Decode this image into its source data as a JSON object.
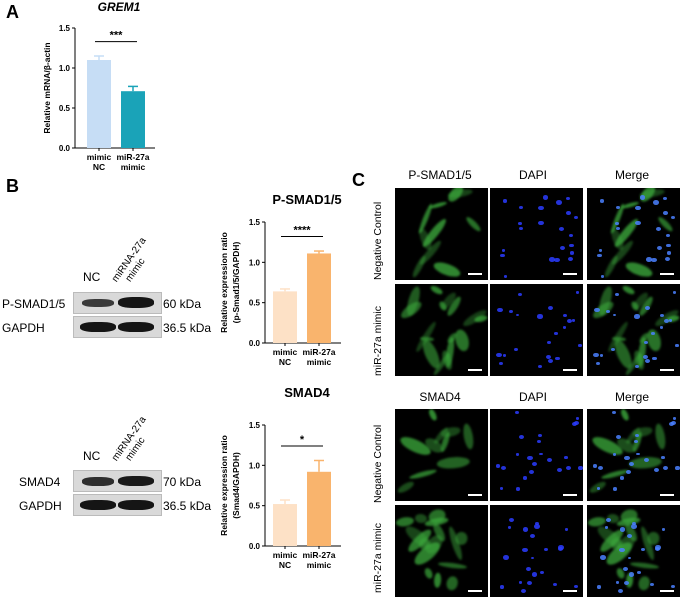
{
  "panels": {
    "A": "A",
    "B": "B",
    "C": "C"
  },
  "chart_data": [
    {
      "type": "bar",
      "title": "GREM1",
      "ylabel": "Relative mRNA/β-actin",
      "ylim": [
        0,
        1.5
      ],
      "yticks": [
        "0.0",
        "0.5",
        "1.0",
        "1.5"
      ],
      "categories": [
        "mimic NC",
        "miR-27a mimic"
      ],
      "category_lines": [
        [
          "mimic",
          "NC"
        ],
        [
          "miR-27a",
          "mimic"
        ]
      ],
      "values": [
        1.1,
        0.71
      ],
      "errors": [
        0.05,
        0.06
      ],
      "colors": [
        "#c6ddf5",
        "#1aa3b8"
      ],
      "significance": "***"
    },
    {
      "type": "bar",
      "title": "P-SMAD1/5",
      "ylabel": "Relative expression ratio (p-Smad1/5/GAPDH)",
      "ylabel_lines": [
        "Relative expression ratio",
        "(p-Smad1/5/GAPDH)"
      ],
      "ylim": [
        0,
        1.5
      ],
      "yticks": [
        "0.0",
        "0.5",
        "1.0",
        "1.5"
      ],
      "categories": [
        "mimic NC",
        "miR-27a mimic"
      ],
      "category_lines": [
        [
          "mimic",
          "NC"
        ],
        [
          "miR-27a",
          "mimic"
        ]
      ],
      "values": [
        0.64,
        1.11
      ],
      "errors": [
        0.03,
        0.03
      ],
      "colors": [
        "#fde1c6",
        "#f9b46d"
      ],
      "significance": "****"
    },
    {
      "type": "bar",
      "title": "SMAD4",
      "ylabel": "Relative expression ratio (Smad4/GAPDH)",
      "ylabel_lines": [
        "Relative expression ratio",
        "(Smad4/GAPDH)"
      ],
      "ylim": [
        0,
        1.5
      ],
      "yticks": [
        "0.0",
        "0.5",
        "1.0",
        "1.5"
      ],
      "categories": [
        "mimic NC",
        "miR-27a mimic"
      ],
      "category_lines": [
        [
          "mimic",
          "NC"
        ],
        [
          "miR-27a",
          "mimic"
        ]
      ],
      "values": [
        0.52,
        0.92
      ],
      "errors": [
        0.05,
        0.14
      ],
      "colors": [
        "#fde1c6",
        "#f9b46d"
      ],
      "significance": "*"
    }
  ],
  "western_blot_1": {
    "lanes": [
      "NC",
      "miRNA-27a mimic"
    ],
    "lane_nc": "NC",
    "lane_mimic_line1": "miRNA-27a",
    "lane_mimic_line2": "mimic",
    "rows": [
      {
        "protein": "P-SMAD1/5",
        "size": "60 kDa"
      },
      {
        "protein": "GAPDH",
        "size": "36.5 kDa"
      }
    ]
  },
  "western_blot_2": {
    "lanes": [
      "NC",
      "miRNA-27a mimic"
    ],
    "lane_nc": "NC",
    "lane_mimic_line1": "miRNA-27a",
    "lane_mimic_line2": "mimic",
    "rows": [
      {
        "protein": "SMAD4",
        "size": "70 kDa"
      },
      {
        "protein": "GAPDH",
        "size": "36.5 kDa"
      }
    ]
  },
  "microscopy_top": {
    "columns": [
      "P-SMAD1/5",
      "DAPI",
      "Merge"
    ],
    "rows": [
      "Negative Control",
      "miR-27a mimic"
    ]
  },
  "microscopy_bottom": {
    "columns": [
      "SMAD4",
      "DAPI",
      "Merge"
    ],
    "rows": [
      "Negative Control",
      "miR-27a mimic"
    ]
  }
}
